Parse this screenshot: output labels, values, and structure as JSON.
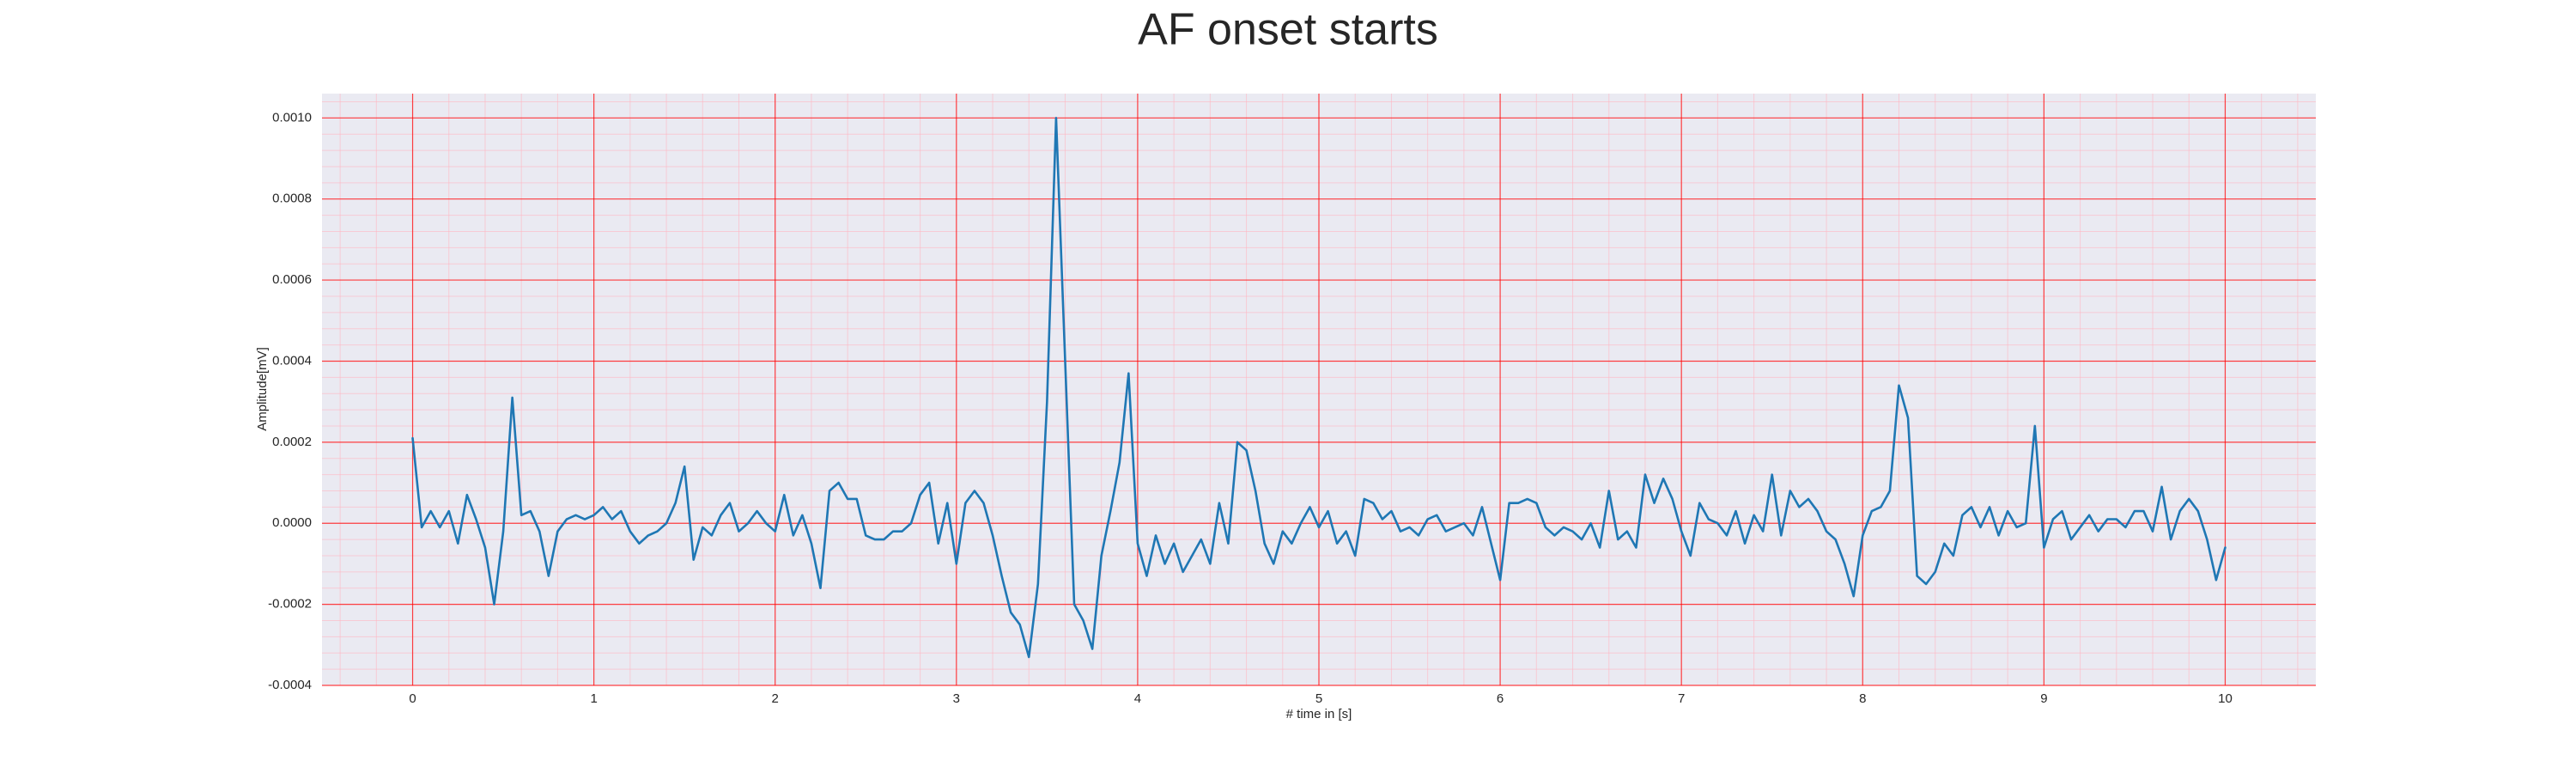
{
  "chart_data": {
    "type": "line",
    "title": "AF onset starts",
    "xlabel": "# time in [s]",
    "ylabel": "Amplitude[mV]",
    "x": [
      0,
      0.05,
      0.1,
      0.15,
      0.2,
      0.25,
      0.3,
      0.35,
      0.4,
      0.45,
      0.5,
      0.55,
      0.6,
      0.65,
      0.7,
      0.75,
      0.8,
      0.85,
      0.9,
      0.95,
      1,
      1.05,
      1.1,
      1.15,
      1.2,
      1.25,
      1.3,
      1.35,
      1.4,
      1.45,
      1.5,
      1.55,
      1.6,
      1.65,
      1.7,
      1.75,
      1.8,
      1.85,
      1.9,
      1.95,
      2,
      2.05,
      2.1,
      2.15,
      2.2,
      2.25,
      2.3,
      2.35,
      2.4,
      2.45,
      2.5,
      2.55,
      2.6,
      2.65,
      2.7,
      2.75,
      2.8,
      2.85,
      2.9,
      2.95,
      3,
      3.05,
      3.1,
      3.15,
      3.2,
      3.25,
      3.3,
      3.35,
      3.4,
      3.45,
      3.5,
      3.55,
      3.6,
      3.65,
      3.7,
      3.75,
      3.8,
      3.85,
      3.9,
      3.95,
      4,
      4.05,
      4.1,
      4.15,
      4.2,
      4.25,
      4.3,
      4.35,
      4.4,
      4.45,
      4.5,
      4.55,
      4.6,
      4.65,
      4.7,
      4.75,
      4.8,
      4.85,
      4.9,
      4.95,
      5,
      5.05,
      5.1,
      5.15,
      5.2,
      5.25,
      5.3,
      5.35,
      5.4,
      5.45,
      5.5,
      5.55,
      5.6,
      5.65,
      5.7,
      5.75,
      5.8,
      5.85,
      5.9,
      5.95,
      6,
      6.05,
      6.1,
      6.15,
      6.2,
      6.25,
      6.3,
      6.35,
      6.4,
      6.45,
      6.5,
      6.55,
      6.6,
      6.65,
      6.7,
      6.75,
      6.8,
      6.85,
      6.9,
      6.95,
      7,
      7.05,
      7.1,
      7.15,
      7.2,
      7.25,
      7.3,
      7.35,
      7.4,
      7.45,
      7.5,
      7.55,
      7.6,
      7.65,
      7.7,
      7.75,
      7.8,
      7.85,
      7.9,
      7.95,
      8,
      8.05,
      8.1,
      8.15,
      8.2,
      8.25,
      8.3,
      8.35,
      8.4,
      8.45,
      8.5,
      8.55,
      8.6,
      8.65,
      8.7,
      8.75,
      8.8,
      8.85,
      8.9,
      8.95,
      9,
      9.05,
      9.1,
      9.15,
      9.2,
      9.25,
      9.3,
      9.35,
      9.4,
      9.45,
      9.5,
      9.55,
      9.6,
      9.65,
      9.7,
      9.75,
      9.8,
      9.85,
      9.9,
      9.95,
      10
    ],
    "series": [
      {
        "color": "#1f77b4",
        "values": [
          0.00021,
          -1e-05,
          3e-05,
          -1e-05,
          3e-05,
          -5e-05,
          7e-05,
          1e-05,
          -6e-05,
          -0.0002,
          -2e-05,
          0.00031,
          2e-05,
          3e-05,
          -2e-05,
          -0.00013,
          -2e-05,
          1e-05,
          2e-05,
          1e-05,
          2e-05,
          4e-05,
          1e-05,
          3e-05,
          -2e-05,
          -5e-05,
          -3e-05,
          -2e-05,
          0,
          5e-05,
          0.00014,
          -9e-05,
          -1e-05,
          -3e-05,
          2e-05,
          5e-05,
          -2e-05,
          0,
          3e-05,
          0,
          -2e-05,
          7e-05,
          -3e-05,
          2e-05,
          -5e-05,
          -0.00016,
          8e-05,
          0.0001,
          6e-05,
          6e-05,
          -3e-05,
          -4e-05,
          -4e-05,
          -2e-05,
          -2e-05,
          0,
          7e-05,
          0.0001,
          -5e-05,
          5e-05,
          -0.0001,
          5e-05,
          8e-05,
          5e-05,
          -3e-05,
          -0.00013,
          -0.00022,
          -0.00025,
          -0.00033,
          -0.00015,
          0.0003,
          0.001,
          0.0004,
          -0.0002,
          -0.00024,
          -0.00031,
          -8e-05,
          3e-05,
          0.00015,
          0.00037,
          -5e-05,
          -0.00013,
          -3e-05,
          -0.0001,
          -5e-05,
          -0.00012,
          -8e-05,
          -4e-05,
          -0.0001,
          5e-05,
          -5e-05,
          0.0002,
          0.00018,
          8e-05,
          -5e-05,
          -0.0001,
          -2e-05,
          -5e-05,
          0,
          4e-05,
          -1e-05,
          3e-05,
          -5e-05,
          -2e-05,
          -8e-05,
          6e-05,
          5e-05,
          1e-05,
          3e-05,
          -2e-05,
          -1e-05,
          -3e-05,
          1e-05,
          2e-05,
          -2e-05,
          -1e-05,
          0,
          -3e-05,
          4e-05,
          -5e-05,
          -0.00014,
          5e-05,
          5e-05,
          6e-05,
          5e-05,
          -1e-05,
          -3e-05,
          -1e-05,
          -2e-05,
          -4e-05,
          0,
          -6e-05,
          8e-05,
          -4e-05,
          -2e-05,
          -6e-05,
          0.00012,
          5e-05,
          0.00011,
          6e-05,
          -2e-05,
          -8e-05,
          5e-05,
          1e-05,
          0,
          -3e-05,
          3e-05,
          -5e-05,
          2e-05,
          -2e-05,
          0.00012,
          -3e-05,
          8e-05,
          4e-05,
          6e-05,
          3e-05,
          -2e-05,
          -4e-05,
          -0.0001,
          -0.00018,
          -3e-05,
          3e-05,
          4e-05,
          8e-05,
          0.00034,
          0.00026,
          -0.00013,
          -0.00015,
          -0.00012,
          -5e-05,
          -8e-05,
          2e-05,
          4e-05,
          -1e-05,
          4e-05,
          -3e-05,
          3e-05,
          -1e-05,
          0,
          0.00024,
          -6e-05,
          1e-05,
          3e-05,
          -4e-05,
          -1e-05,
          2e-05,
          -2e-05,
          1e-05,
          1e-05,
          -1e-05,
          3e-05,
          3e-05,
          -2e-05,
          9e-05,
          -4e-05,
          3e-05,
          6e-05,
          3e-05,
          -4e-05,
          -0.00014,
          -6e-05
        ]
      }
    ],
    "xlim": [
      -0.5,
      10.5
    ],
    "ylim": [
      -0.0004,
      0.00106
    ],
    "xticks": [
      0,
      1,
      2,
      3,
      4,
      5,
      6,
      7,
      8,
      9,
      10
    ],
    "yticks": [
      {
        "value": -0.0004,
        "label": "-0.0004"
      },
      {
        "value": -0.0002,
        "label": "-0.0002"
      },
      {
        "value": 0,
        "label": "0.0000"
      },
      {
        "value": 0.0002,
        "label": "0.0002"
      },
      {
        "value": 0.0004,
        "label": "0.0004"
      },
      {
        "value": 0.0006,
        "label": "0.0006"
      },
      {
        "value": 0.0008,
        "label": "0.0008"
      },
      {
        "value": 0.001,
        "label": "0.0010"
      }
    ],
    "xminorticks": [
      -0.4,
      -0.2,
      0,
      0.2,
      0.4,
      0.6,
      0.8,
      1,
      1.2,
      1.4,
      1.6,
      1.8,
      2,
      2.2,
      2.4,
      2.6,
      2.8,
      3,
      3.2,
      3.4,
      3.6,
      3.8,
      4,
      4.2,
      4.4,
      4.6,
      4.8,
      5,
      5.2,
      5.4,
      5.6,
      5.8,
      6,
      6.2,
      6.4,
      6.6,
      6.8,
      7,
      7.2,
      7.4,
      7.6,
      7.8,
      8,
      8.2,
      8.4,
      8.6,
      8.8,
      9,
      9.2,
      9.4,
      9.6,
      9.8,
      10,
      10.2,
      10.4
    ],
    "yminorticks": [
      -0.0004,
      -0.00036,
      -0.00032,
      -0.00028,
      -0.00024,
      -0.0002,
      -0.00016,
      -0.00012,
      -8e-05,
      -4e-05,
      0,
      4e-05,
      8e-05,
      0.00012,
      0.00016,
      0.0002,
      0.00024,
      0.00028,
      0.00032,
      0.00036,
      0.0004,
      0.00044,
      0.00048,
      0.00052,
      0.00056,
      0.0006,
      0.00064,
      0.00068,
      0.00072,
      0.00076,
      0.0008,
      0.00084,
      0.00088,
      0.00092,
      0.00096,
      0.001,
      0.00104
    ],
    "grid": true,
    "grid_color": "#ff0000",
    "minor_grid_color": "#ffb6c1",
    "background": "#eaeaf2"
  }
}
